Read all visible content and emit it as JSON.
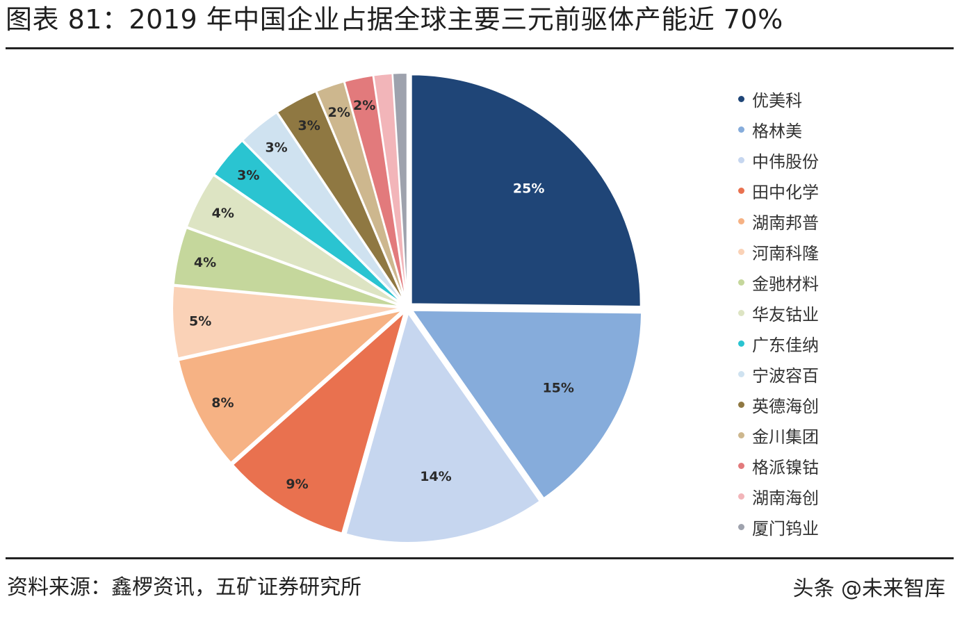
{
  "title": "图表 81：2019 年中国企业占据全球主要三元前驱体产能近 70%",
  "source": "资料来源：鑫椤资讯，五矿证券研究所",
  "watermark": "头条 @未来智库",
  "chart_data": {
    "type": "pie",
    "title": "图表 81：2019 年中国企业占据全球主要三元前驱体产能近 70%",
    "legend_position": "right",
    "slices": [
      {
        "name": "优美科",
        "value": 25,
        "label": "25%",
        "color": "#1f4577",
        "label_color": "#ffffff"
      },
      {
        "name": "格林美",
        "value": 15,
        "label": "15%",
        "color": "#86acdb",
        "label_color": "#2a2a2a"
      },
      {
        "name": "中伟股份",
        "value": 14,
        "label": "14%",
        "color": "#c6d6ef",
        "label_color": "#2a2a2a"
      },
      {
        "name": "田中化学",
        "value": 9,
        "label": "9%",
        "color": "#e9714f",
        "label_color": "#2a2a2a"
      },
      {
        "name": "湖南邦普",
        "value": 8,
        "label": "8%",
        "color": "#f6b284",
        "label_color": "#2a2a2a"
      },
      {
        "name": "河南科隆",
        "value": 5,
        "label": "5%",
        "color": "#fad2b7",
        "label_color": "#2a2a2a"
      },
      {
        "name": "金驰材料",
        "value": 4,
        "label": "4%",
        "color": "#c5d79c",
        "label_color": "#2a2a2a"
      },
      {
        "name": "华友钴业",
        "value": 4,
        "label": "4%",
        "color": "#dde4c3",
        "label_color": "#2a2a2a"
      },
      {
        "name": "广东佳纳",
        "value": 3,
        "label": "3%",
        "color": "#2ac4d1",
        "label_color": "#2a2a2a"
      },
      {
        "name": "宁波容百",
        "value": 3,
        "label": "3%",
        "color": "#cfe2f0",
        "label_color": "#2a2a2a"
      },
      {
        "name": "英德海创",
        "value": 3,
        "label": "3%",
        "color": "#8f7842",
        "label_color": "#2a2a2a"
      },
      {
        "name": "金川集团",
        "value": 2,
        "label": "2%",
        "color": "#cdb78e",
        "label_color": "#2a2a2a"
      },
      {
        "name": "格派镍钴",
        "value": 2,
        "label": "2%",
        "color": "#e27a7c",
        "label_color": "#2a2a2a"
      },
      {
        "name": "湖南海创",
        "value": 1.3,
        "label": "",
        "color": "#f2b5b9",
        "label_color": "#2a2a2a"
      },
      {
        "name": "厦门钨业",
        "value": 1,
        "label": "",
        "color": "#9ea2ad",
        "label_color": "#2a2a2a"
      }
    ]
  }
}
